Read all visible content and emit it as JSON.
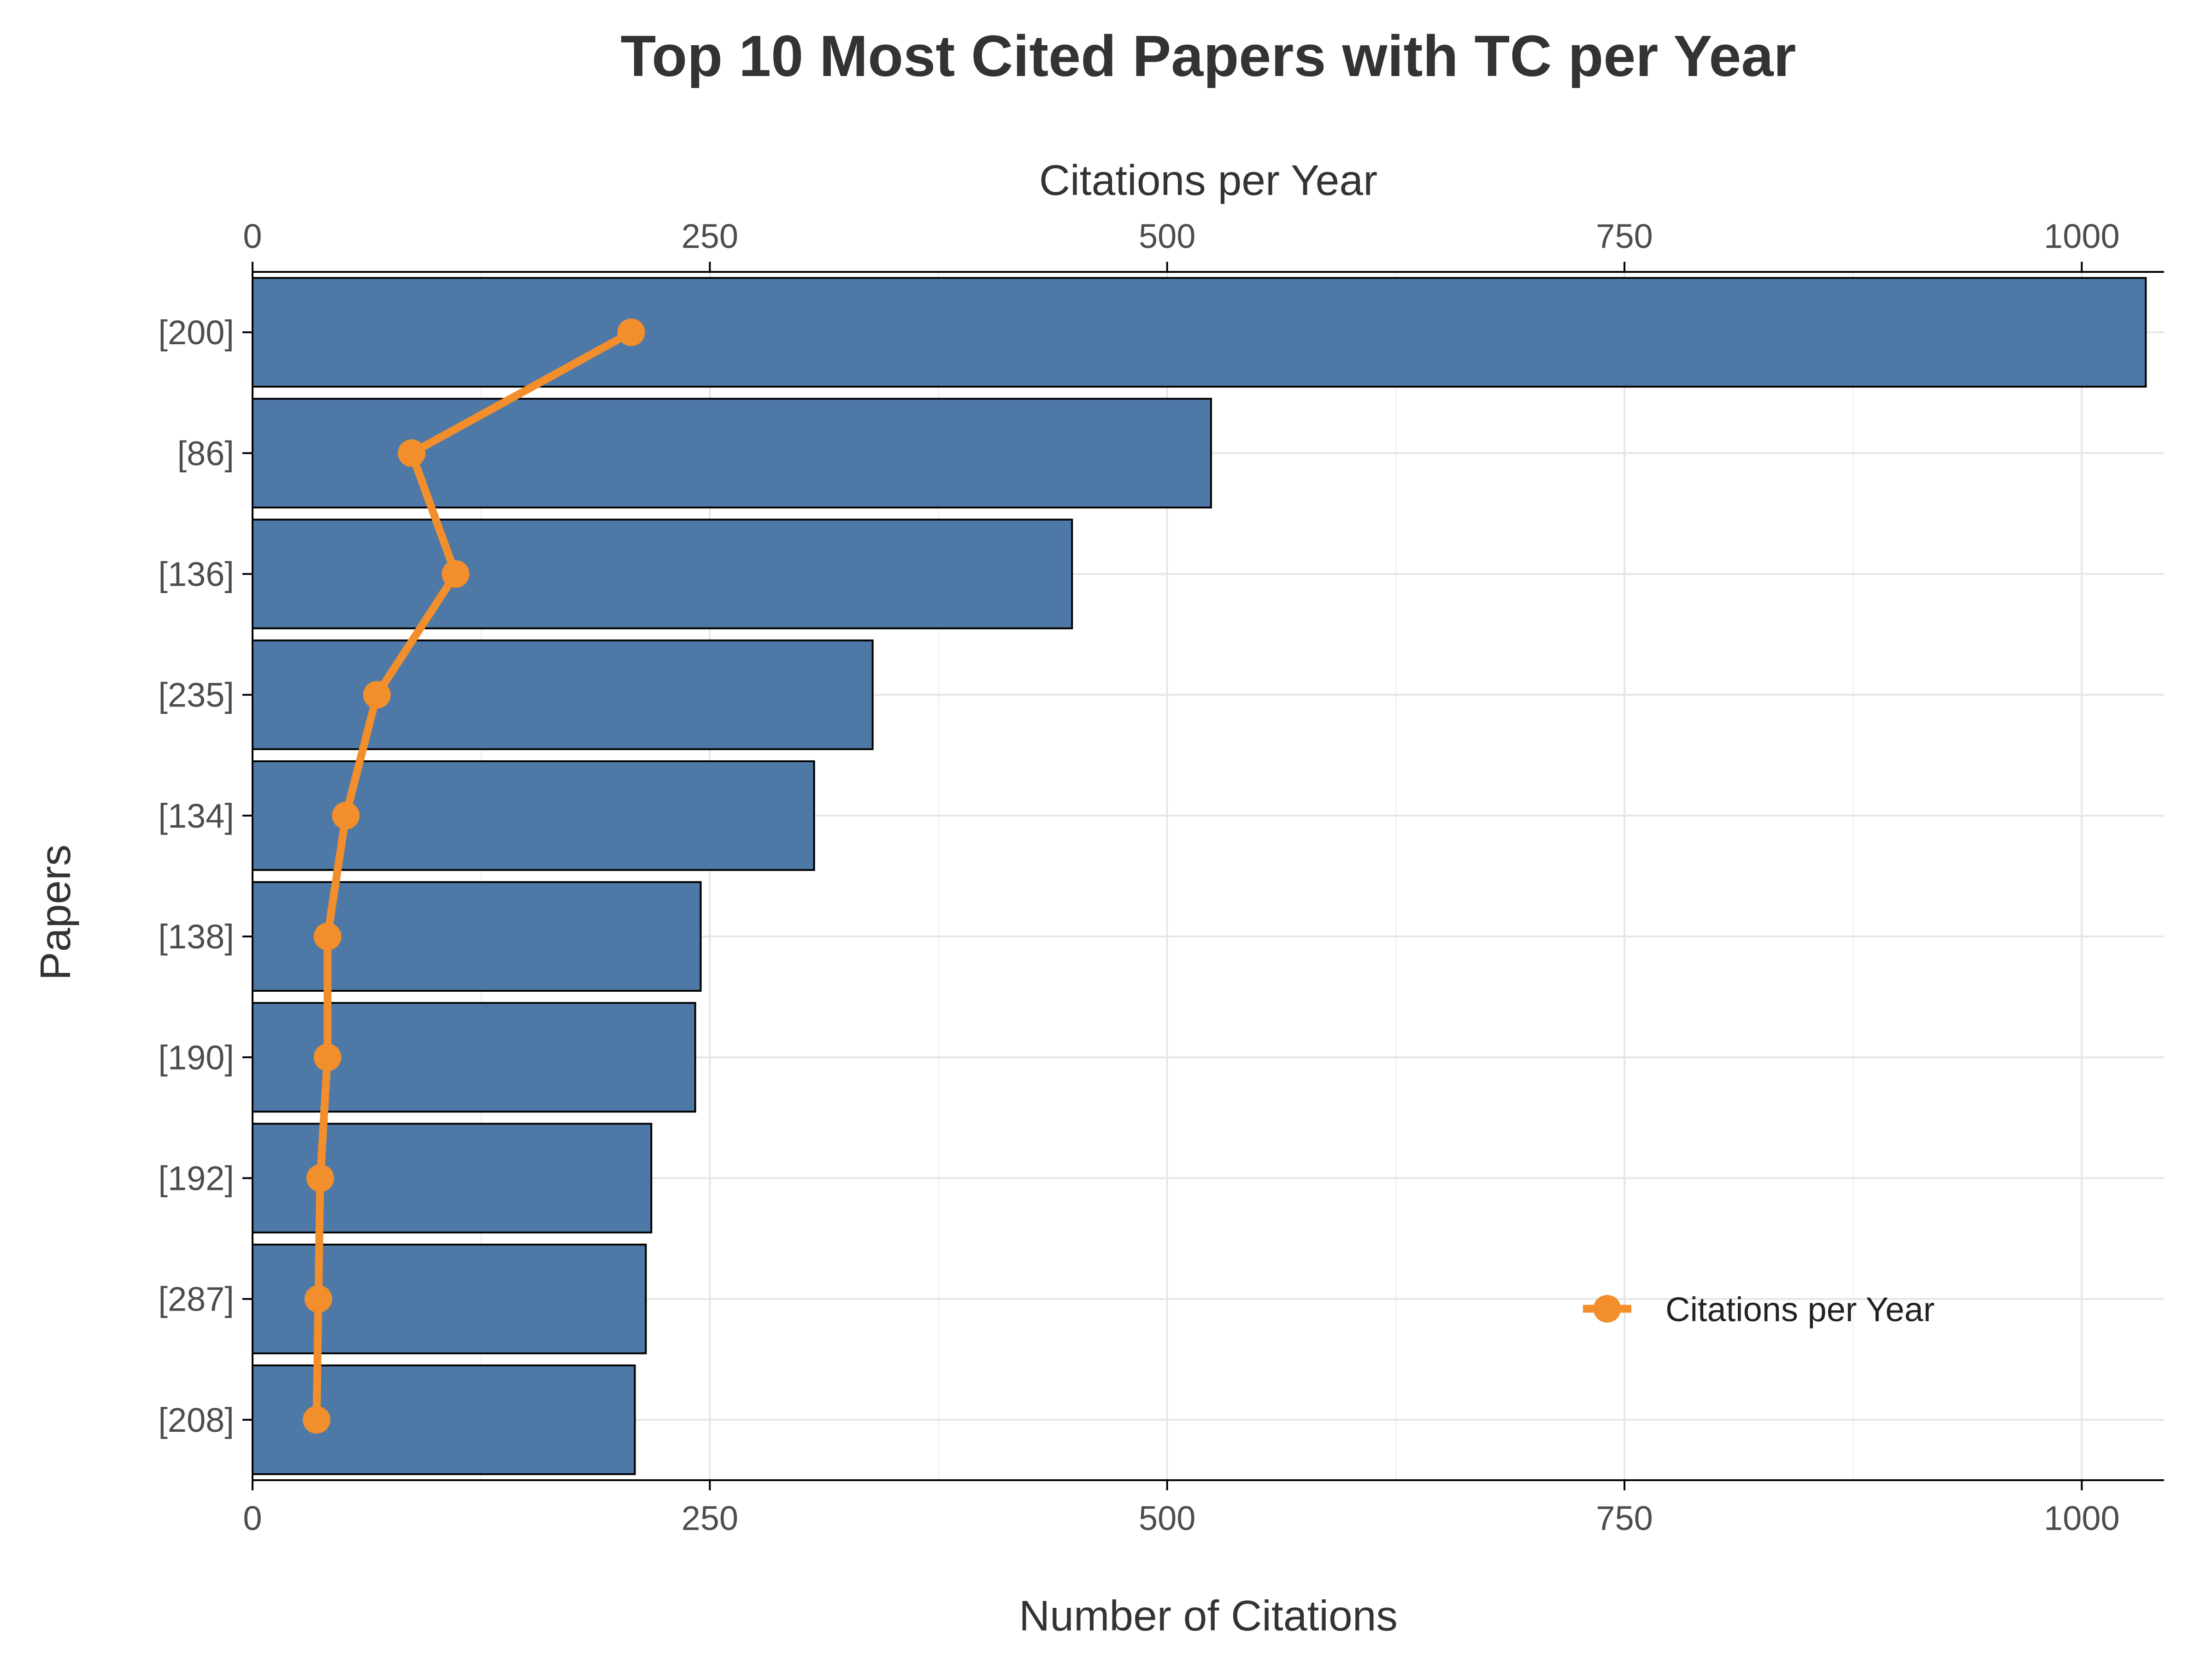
{
  "chart_data": {
    "type": "bar",
    "title": "Top 10 Most Cited Papers with TC per Year",
    "xlabel": "Number of Citations",
    "ylabel": "Papers",
    "secondary_xlabel": "Citations per Year",
    "xlim": [
      0,
      1045
    ],
    "x_ticks": [
      0,
      250,
      500,
      750,
      1000
    ],
    "orientation": "horizontal",
    "grid": true,
    "legend_position": "bottom-right",
    "categories": [
      "[200]",
      "[86]",
      "[136]",
      "[235]",
      "[134]",
      "[138]",
      "[190]",
      "[192]",
      "[287]",
      "[208]"
    ],
    "series": [
      {
        "name": "",
        "type": "bar",
        "color": "#4e79a7",
        "values": [
          1035,
          524,
          448,
          339,
          307,
          245,
          242,
          218,
          215,
          209
        ]
      },
      {
        "name": "Citations per Year",
        "type": "line",
        "color": "#f28e2b",
        "values": [
          207,
          87,
          111,
          68,
          51,
          41,
          41,
          37,
          36,
          35
        ]
      }
    ]
  }
}
